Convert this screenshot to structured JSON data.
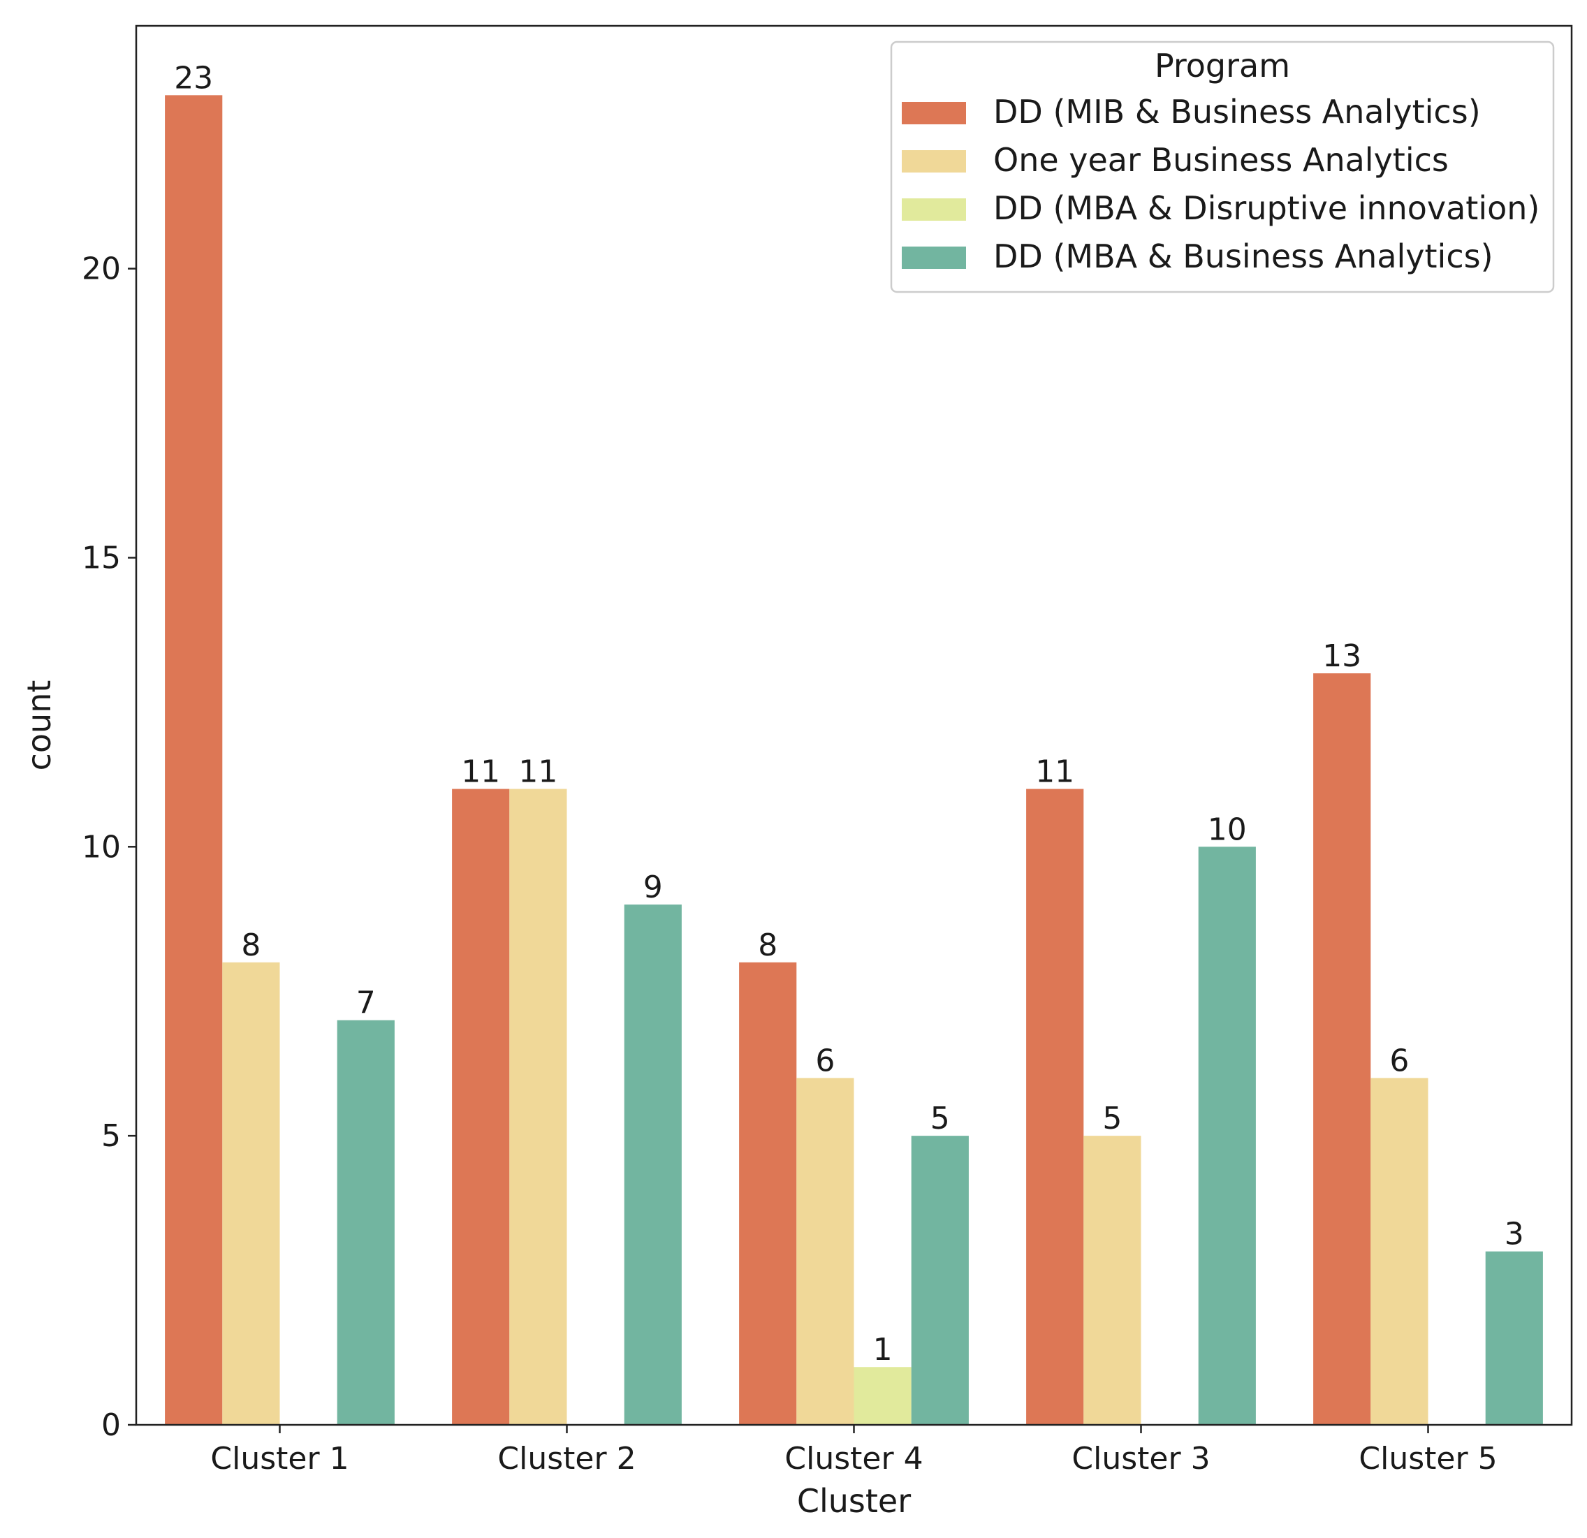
{
  "chart_data": {
    "type": "bar",
    "title": "",
    "xlabel": "Cluster",
    "ylabel": "count",
    "ylim": [
      0,
      24.2
    ],
    "yticks": [
      0,
      5,
      10,
      15,
      20
    ],
    "grid": false,
    "categories": [
      "Cluster 1",
      "Cluster 2",
      "Cluster 4",
      "Cluster 3",
      "Cluster 5"
    ],
    "legend": {
      "title": "Program",
      "placement": "top-right"
    },
    "series": [
      {
        "name": "DD (MIB & Business Analytics)",
        "color": "#dd7755",
        "values": [
          23,
          11,
          8,
          11,
          13
        ]
      },
      {
        "name": "One year Business Analytics",
        "color": "#f0d898",
        "values": [
          8,
          11,
          6,
          5,
          6
        ]
      },
      {
        "name": "DD (MBA & Disruptive innovation)",
        "color": "#e1ea9c",
        "values": [
          null,
          null,
          1,
          null,
          null
        ]
      },
      {
        "name": "DD (MBA & Business Analytics)",
        "color": "#72b5a0",
        "values": [
          7,
          9,
          5,
          10,
          3
        ]
      }
    ]
  }
}
